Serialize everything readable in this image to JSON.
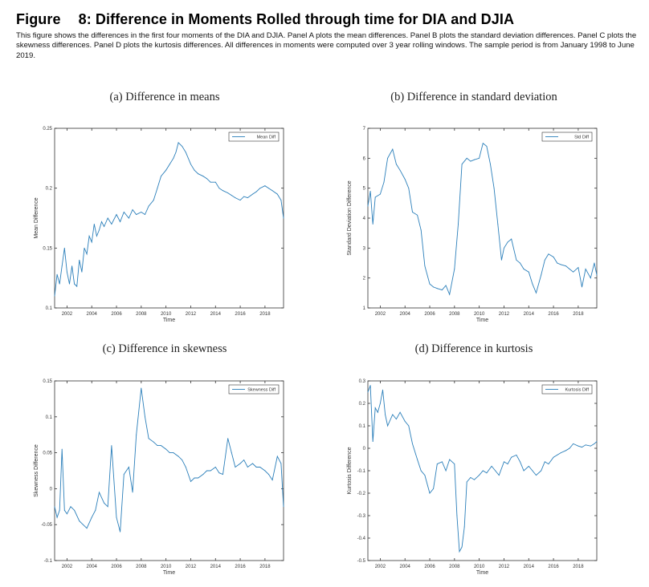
{
  "figure": {
    "label": "Figure",
    "title": "8: Difference in Moments Rolled through time for DIA and DJIA",
    "caption": "This figure shows the differences in the first four moments of the DIA and DJIA. Panel A plots the mean differences. Panel B plots the standard deviation differences. Panel C plots the skewness differences. Panel D plots the kurtosis differences. All differences in moments were computed over 3 year rolling windows. The sample period is from January 1998 to June 2019."
  },
  "colors": {
    "line": "#2b7fba",
    "axis": "#333333"
  },
  "chart_data": [
    {
      "type": "line",
      "panel": "(a) Difference in means",
      "xlabel": "Time",
      "ylabel": "Mean Difference",
      "legend": "Mean Diff",
      "xlim": [
        2001.0,
        2019.5
      ],
      "ylim": [
        0.1,
        0.25
      ],
      "xticks": [
        "2002",
        "2004",
        "2006",
        "2008",
        "2010",
        "2012",
        "2014",
        "2016",
        "2018"
      ],
      "yticks": [
        "0.1",
        "0.15",
        "0.2",
        "0.25"
      ],
      "x": [
        2001.0,
        2001.2,
        2001.4,
        2001.6,
        2001.8,
        2002.0,
        2002.2,
        2002.4,
        2002.6,
        2002.8,
        2003.0,
        2003.2,
        2003.4,
        2003.6,
        2003.8,
        2004.0,
        2004.2,
        2004.4,
        2004.6,
        2004.8,
        2005.0,
        2005.3,
        2005.6,
        2006.0,
        2006.3,
        2006.6,
        2007.0,
        2007.3,
        2007.6,
        2008.0,
        2008.3,
        2008.6,
        2009.0,
        2009.3,
        2009.6,
        2010.0,
        2010.3,
        2010.6,
        2010.8,
        2011.0,
        2011.3,
        2011.6,
        2012.0,
        2012.3,
        2012.6,
        2013.0,
        2013.3,
        2013.6,
        2014.0,
        2014.3,
        2014.6,
        2015.0,
        2015.3,
        2015.6,
        2016.0,
        2016.3,
        2016.6,
        2017.0,
        2017.3,
        2017.6,
        2018.0,
        2018.3,
        2018.6,
        2019.0,
        2019.3,
        2019.5
      ],
      "values": [
        0.11,
        0.128,
        0.12,
        0.135,
        0.15,
        0.13,
        0.12,
        0.135,
        0.12,
        0.118,
        0.14,
        0.13,
        0.15,
        0.145,
        0.16,
        0.155,
        0.17,
        0.16,
        0.165,
        0.172,
        0.168,
        0.175,
        0.17,
        0.178,
        0.172,
        0.18,
        0.175,
        0.182,
        0.178,
        0.18,
        0.178,
        0.185,
        0.19,
        0.2,
        0.21,
        0.215,
        0.22,
        0.225,
        0.23,
        0.238,
        0.235,
        0.23,
        0.22,
        0.215,
        0.212,
        0.21,
        0.208,
        0.205,
        0.205,
        0.2,
        0.198,
        0.196,
        0.194,
        0.192,
        0.19,
        0.193,
        0.192,
        0.195,
        0.197,
        0.2,
        0.202,
        0.2,
        0.198,
        0.195,
        0.19,
        0.175
      ]
    },
    {
      "type": "line",
      "panel": "(b) Difference in standard deviation",
      "xlabel": "Time",
      "ylabel": "Standard Deviation Difference",
      "legend": "Std Diff",
      "xlim": [
        2001.0,
        2019.5
      ],
      "ylim": [
        1,
        7
      ],
      "xticks": [
        "2002",
        "2004",
        "2006",
        "2008",
        "2010",
        "2012",
        "2014",
        "2016",
        "2018"
      ],
      "yticks": [
        "1",
        "2",
        "3",
        "4",
        "5",
        "6",
        "7"
      ],
      "x": [
        2001.0,
        2001.2,
        2001.4,
        2001.6,
        2002.0,
        2002.3,
        2002.6,
        2003.0,
        2003.3,
        2003.6,
        2004.0,
        2004.3,
        2004.6,
        2005.0,
        2005.3,
        2005.6,
        2006.0,
        2006.3,
        2006.6,
        2007.0,
        2007.3,
        2007.6,
        2008.0,
        2008.3,
        2008.6,
        2009.0,
        2009.3,
        2009.6,
        2010.0,
        2010.3,
        2010.6,
        2010.9,
        2011.2,
        2011.5,
        2011.8,
        2012.0,
        2012.3,
        2012.6,
        2013.0,
        2013.3,
        2013.6,
        2014.0,
        2014.3,
        2014.6,
        2015.0,
        2015.3,
        2015.6,
        2016.0,
        2016.3,
        2016.6,
        2017.0,
        2017.3,
        2017.6,
        2018.0,
        2018.3,
        2018.6,
        2019.0,
        2019.3,
        2019.5
      ],
      "values": [
        4.4,
        4.9,
        3.8,
        4.7,
        4.8,
        5.2,
        6.0,
        6.3,
        5.8,
        5.6,
        5.3,
        5.0,
        4.2,
        4.1,
        3.6,
        2.4,
        1.8,
        1.7,
        1.65,
        1.6,
        1.75,
        1.45,
        2.3,
        3.8,
        5.8,
        6.0,
        5.9,
        5.95,
        6.0,
        6.5,
        6.4,
        5.8,
        5.0,
        3.8,
        2.6,
        3.0,
        3.2,
        3.3,
        2.6,
        2.5,
        2.3,
        2.2,
        1.8,
        1.5,
        2.1,
        2.6,
        2.8,
        2.7,
        2.5,
        2.45,
        2.4,
        2.3,
        2.2,
        2.35,
        1.7,
        2.3,
        2.0,
        2.5,
        2.1
      ]
    },
    {
      "type": "line",
      "panel": "(c) Difference in skewness",
      "xlabel": "Time",
      "ylabel": "Skewness Difference",
      "legend": "Skewness Diff",
      "xlim": [
        2001.0,
        2019.5
      ],
      "ylim": [
        -0.1,
        0.15
      ],
      "xticks": [
        "2002",
        "2004",
        "2006",
        "2008",
        "2010",
        "2012",
        "2014",
        "2016",
        "2018"
      ],
      "yticks": [
        "-0.1",
        "-0.05",
        "0",
        "0.05",
        "0.1",
        "0.15"
      ],
      "x": [
        2001.0,
        2001.2,
        2001.4,
        2001.6,
        2001.8,
        2002.0,
        2002.3,
        2002.6,
        2003.0,
        2003.3,
        2003.6,
        2004.0,
        2004.3,
        2004.6,
        2005.0,
        2005.3,
        2005.6,
        2006.0,
        2006.3,
        2006.6,
        2007.0,
        2007.3,
        2007.6,
        2008.0,
        2008.3,
        2008.6,
        2009.0,
        2009.3,
        2009.6,
        2010.0,
        2010.3,
        2010.6,
        2011.0,
        2011.3,
        2011.6,
        2012.0,
        2012.3,
        2012.6,
        2013.0,
        2013.3,
        2013.6,
        2014.0,
        2014.3,
        2014.6,
        2015.0,
        2015.3,
        2015.6,
        2016.0,
        2016.3,
        2016.6,
        2017.0,
        2017.3,
        2017.6,
        2018.0,
        2018.3,
        2018.6,
        2019.0,
        2019.3,
        2019.5
      ],
      "values": [
        -0.025,
        -0.04,
        -0.03,
        0.055,
        -0.03,
        -0.035,
        -0.025,
        -0.03,
        -0.045,
        -0.05,
        -0.055,
        -0.04,
        -0.03,
        -0.005,
        -0.02,
        -0.025,
        0.06,
        -0.04,
        -0.06,
        0.02,
        0.03,
        -0.005,
        0.075,
        0.14,
        0.1,
        0.07,
        0.065,
        0.06,
        0.06,
        0.055,
        0.05,
        0.05,
        0.045,
        0.04,
        0.03,
        0.01,
        0.015,
        0.015,
        0.02,
        0.025,
        0.025,
        0.03,
        0.022,
        0.02,
        0.07,
        0.05,
        0.03,
        0.035,
        0.04,
        0.03,
        0.035,
        0.03,
        0.03,
        0.025,
        0.02,
        0.012,
        0.045,
        0.035,
        -0.025
      ]
    },
    {
      "type": "line",
      "panel": "(d) Difference in kurtosis",
      "xlabel": "Time",
      "ylabel": "Kurtosis Difference",
      "legend": "Kurtosis Diff",
      "xlim": [
        2001.0,
        2019.5
      ],
      "ylim": [
        -0.5,
        0.3
      ],
      "xticks": [
        "2002",
        "2004",
        "2006",
        "2008",
        "2010",
        "2012",
        "2014",
        "2016",
        "2018"
      ],
      "yticks": [
        "-0.5",
        "-0.4",
        "-0.3",
        "-0.2",
        "-0.1",
        "0",
        "0.1",
        "0.2",
        "0.3"
      ],
      "x": [
        2001.0,
        2001.2,
        2001.4,
        2001.6,
        2001.8,
        2002.0,
        2002.2,
        2002.4,
        2002.6,
        2003.0,
        2003.3,
        2003.6,
        2004.0,
        2004.3,
        2004.6,
        2005.0,
        2005.3,
        2005.6,
        2006.0,
        2006.3,
        2006.6,
        2007.0,
        2007.3,
        2007.6,
        2008.0,
        2008.2,
        2008.4,
        2008.6,
        2008.8,
        2009.0,
        2009.3,
        2009.6,
        2010.0,
        2010.3,
        2010.6,
        2011.0,
        2011.3,
        2011.6,
        2012.0,
        2012.3,
        2012.6,
        2013.0,
        2013.3,
        2013.6,
        2014.0,
        2014.3,
        2014.6,
        2015.0,
        2015.3,
        2015.6,
        2016.0,
        2016.3,
        2016.6,
        2017.0,
        2017.3,
        2017.6,
        2018.0,
        2018.3,
        2018.6,
        2019.0,
        2019.3,
        2019.5
      ],
      "values": [
        0.25,
        0.28,
        0.03,
        0.18,
        0.16,
        0.2,
        0.26,
        0.15,
        0.1,
        0.15,
        0.13,
        0.16,
        0.12,
        0.1,
        0.02,
        -0.05,
        -0.1,
        -0.12,
        -0.2,
        -0.18,
        -0.07,
        -0.06,
        -0.1,
        -0.05,
        -0.07,
        -0.3,
        -0.46,
        -0.44,
        -0.35,
        -0.15,
        -0.13,
        -0.14,
        -0.12,
        -0.1,
        -0.11,
        -0.08,
        -0.1,
        -0.12,
        -0.06,
        -0.07,
        -0.04,
        -0.03,
        -0.06,
        -0.1,
        -0.08,
        -0.1,
        -0.12,
        -0.1,
        -0.06,
        -0.07,
        -0.04,
        -0.03,
        -0.02,
        -0.01,
        0.0,
        0.02,
        0.01,
        0.005,
        0.015,
        0.01,
        0.02,
        0.03
      ]
    }
  ]
}
